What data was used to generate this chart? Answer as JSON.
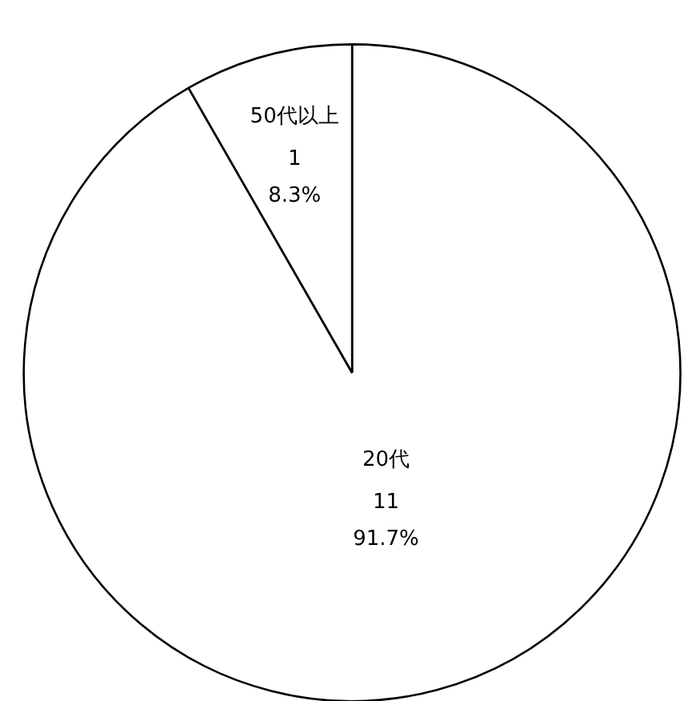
{
  "chart_data": {
    "type": "pie",
    "categories": [
      "20代",
      "50代以上"
    ],
    "values": [
      91.7,
      8.3
    ],
    "colors": [
      "#ffffff",
      "#ffffff"
    ],
    "value_labels": [
      "11\n91.7%",
      "1\n8.3%"
    ]
  }
}
